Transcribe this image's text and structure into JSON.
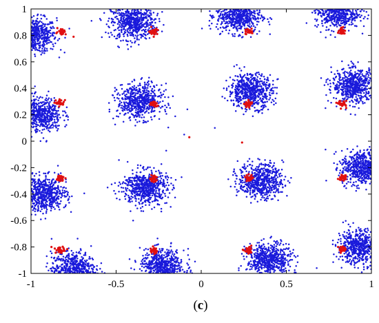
{
  "caption": {
    "open": "(",
    "letter": "c",
    "close": ")"
  },
  "chart_data": {
    "type": "scatter",
    "title": "",
    "xlabel": "",
    "ylabel": "",
    "xlim": [
      -1,
      1
    ],
    "ylim": [
      -1,
      1
    ],
    "x_ticks": [
      -1,
      -0.5,
      0,
      0.5,
      1
    ],
    "x_tick_labels": [
      "-1",
      "-0.5",
      "0",
      "0.5",
      "1"
    ],
    "y_ticks": [
      1,
      0.8,
      0.6,
      0.4,
      0.2,
      0,
      -0.2,
      -0.4,
      -0.6,
      -0.8,
      -1
    ],
    "y_tick_labels": [
      "1",
      "0.8",
      "0.6",
      "0.4",
      "0.2",
      "0",
      "-0.2",
      "-0.4",
      "-0.6",
      "-0.8",
      "-1"
    ],
    "grid": false,
    "series": [
      {
        "color": "#1a1adb",
        "marker": "dot",
        "cluster_centers": [
          [
            -0.98,
            0.8
          ],
          [
            -0.4,
            0.9
          ],
          [
            0.22,
            0.95
          ],
          [
            0.8,
            0.98
          ],
          [
            -0.95,
            0.2
          ],
          [
            -0.36,
            0.3
          ],
          [
            0.29,
            0.38
          ],
          [
            0.9,
            0.42
          ],
          [
            -0.92,
            -0.4
          ],
          [
            -0.33,
            -0.35
          ],
          [
            0.35,
            -0.3
          ],
          [
            0.95,
            -0.2
          ],
          [
            -0.75,
            -0.97
          ],
          [
            -0.23,
            -0.95
          ],
          [
            0.4,
            -0.9
          ],
          [
            0.93,
            -0.8
          ]
        ],
        "points_per_cluster": 600,
        "spread": 0.065,
        "outliers": [
          [
            -0.1,
            0.05
          ],
          [
            0.08,
            0.1
          ],
          [
            -0.4,
            -0.6
          ],
          [
            0.15,
            0.4
          ],
          [
            0.73,
            0.25
          ],
          [
            -0.55,
            -0.35
          ]
        ]
      },
      {
        "color": "#e01010",
        "marker": "dot",
        "cluster_centers": [
          [
            -0.82,
            0.83
          ],
          [
            -0.28,
            0.83
          ],
          [
            0.28,
            0.83
          ],
          [
            0.83,
            0.83
          ],
          [
            -0.83,
            0.29
          ],
          [
            -0.28,
            0.28
          ],
          [
            0.28,
            0.28
          ],
          [
            0.83,
            0.28
          ],
          [
            -0.83,
            -0.28
          ],
          [
            -0.28,
            -0.28
          ],
          [
            0.28,
            -0.28
          ],
          [
            0.83,
            -0.28
          ],
          [
            -0.83,
            -0.82
          ],
          [
            -0.28,
            -0.83
          ],
          [
            0.28,
            -0.83
          ],
          [
            0.83,
            -0.82
          ]
        ],
        "points_per_cluster": 30,
        "spread": 0.012,
        "outliers": [
          [
            -0.75,
            0.79
          ],
          [
            -0.07,
            0.03
          ],
          [
            0.24,
            -0.01
          ],
          [
            -0.88,
            -0.8
          ]
        ]
      }
    ]
  }
}
